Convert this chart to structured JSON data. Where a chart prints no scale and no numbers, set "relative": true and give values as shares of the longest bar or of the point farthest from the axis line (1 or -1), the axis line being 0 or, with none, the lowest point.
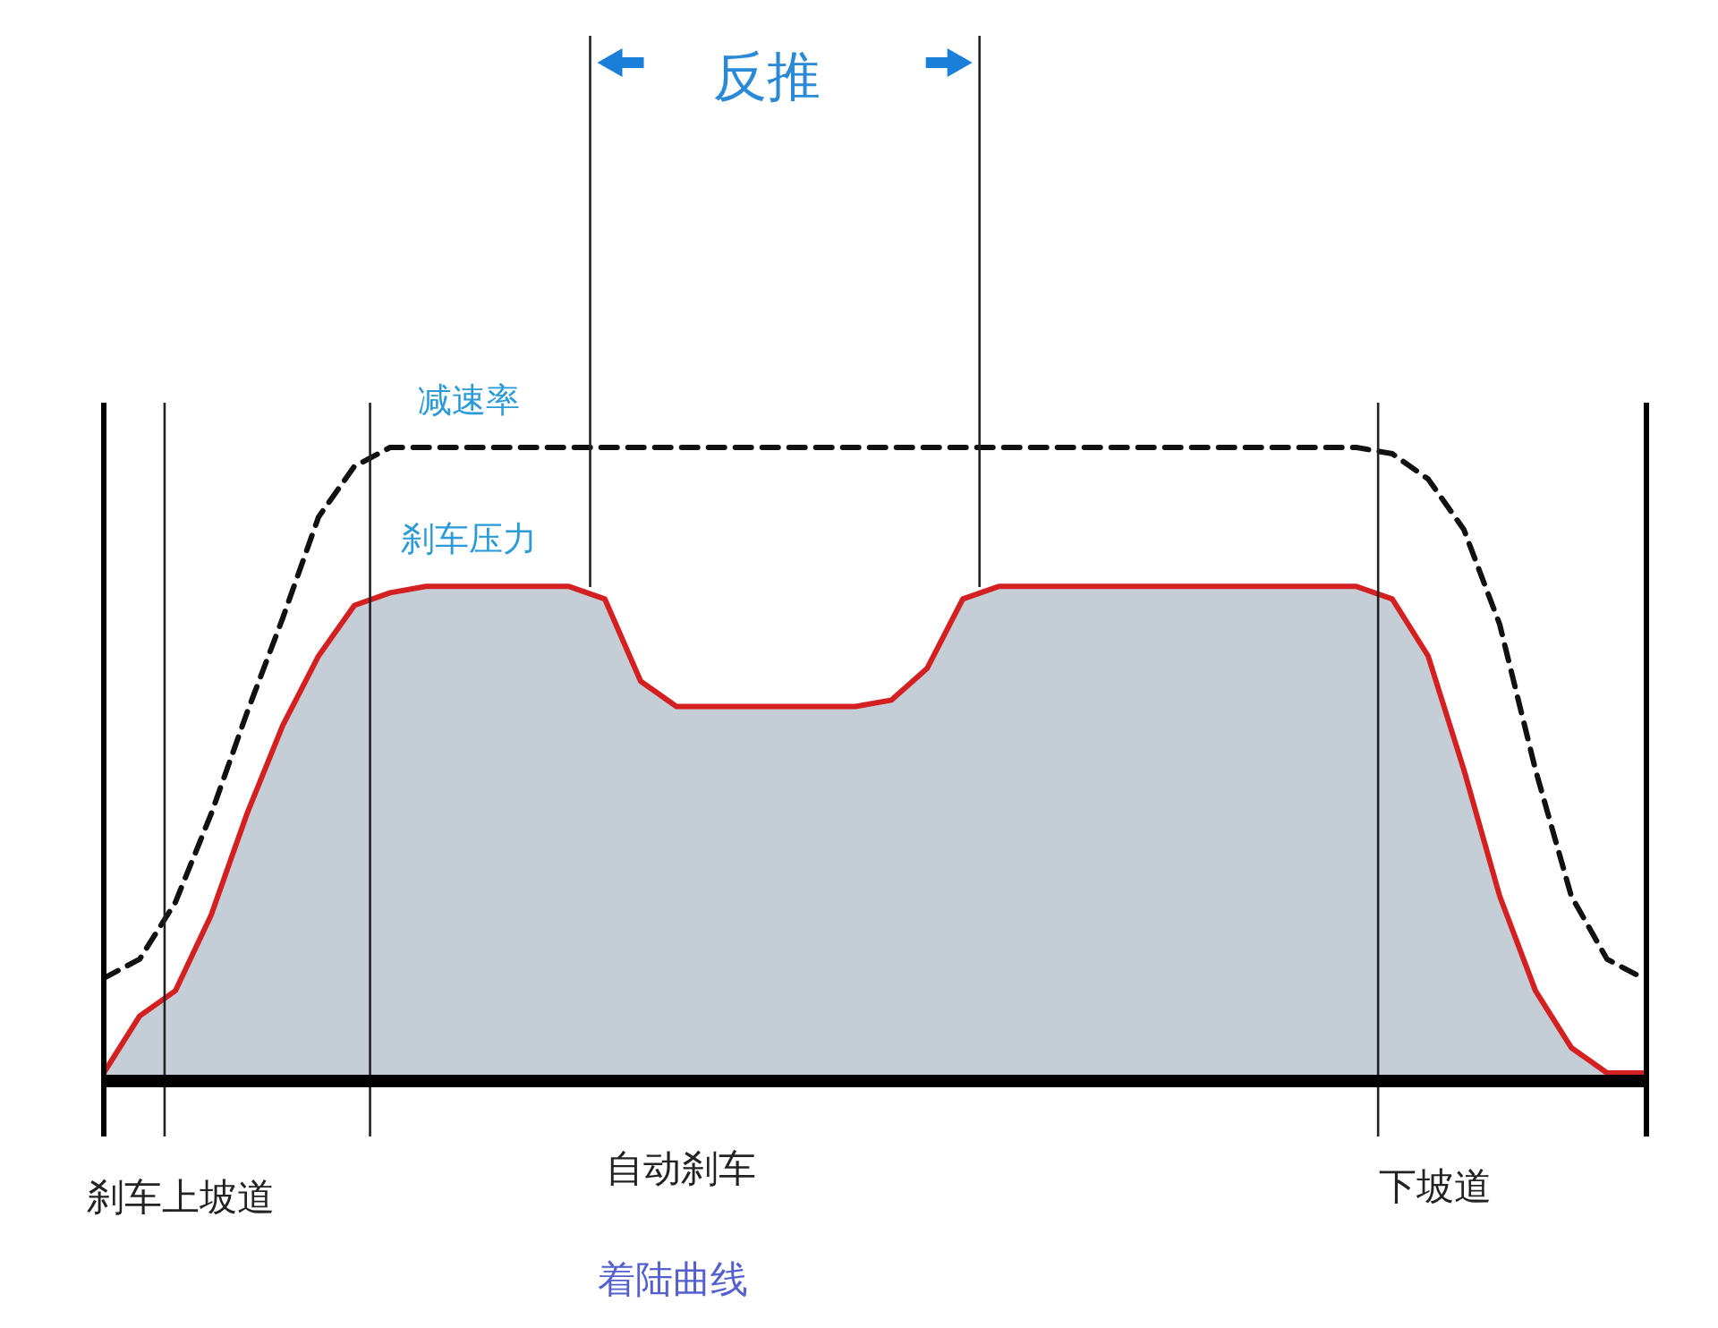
{
  "chart_data": {
    "type": "line",
    "relative": true,
    "title": "着陆曲线",
    "categories": [
      null,
      null,
      null,
      null,
      null,
      null,
      null,
      null,
      null,
      null,
      null,
      null,
      null,
      null,
      null,
      null,
      null,
      null,
      null,
      null,
      null,
      null,
      null,
      null,
      null,
      null,
      null,
      null,
      null,
      null,
      null,
      null,
      null,
      null,
      null,
      null,
      null,
      null,
      null,
      null,
      null,
      null,
      null,
      null
    ],
    "series": [
      {
        "type": "area",
        "name": "刹车压力",
        "color": "#d42020",
        "values": [
          0.01,
          0.1,
          0.14,
          0.26,
          0.42,
          0.56,
          0.67,
          0.75,
          0.77,
          0.78,
          0.78,
          0.78,
          0.78,
          0.78,
          0.76,
          0.63,
          0.59,
          0.59,
          0.59,
          0.59,
          0.59,
          0.59,
          0.6,
          0.65,
          0.76,
          0.78,
          0.78,
          0.78,
          0.78,
          0.78,
          0.78,
          0.78,
          0.78,
          0.78,
          0.78,
          0.78,
          0.76,
          0.67,
          0.49,
          0.29,
          0.14,
          0.05,
          0.01,
          0.01
        ]
      },
      {
        "name": "减速率",
        "color": "#111111",
        "line_style": "dashed",
        "values": [
          0.16,
          0.19,
          0.28,
          0.42,
          0.58,
          0.73,
          0.89,
          0.97,
          1,
          1,
          1,
          1,
          1,
          1,
          1,
          1,
          1,
          1,
          1,
          1,
          1,
          1,
          1,
          1,
          1,
          1,
          1,
          1,
          1,
          1,
          1,
          1,
          1,
          1,
          1,
          1,
          0.99,
          0.95,
          0.87,
          0.72,
          0.49,
          0.29,
          0.19,
          0.16
        ]
      }
    ],
    "annotations": [
      "反推",
      "刹车上坡道",
      "自动刹车",
      "下坡道"
    ]
  }
}
